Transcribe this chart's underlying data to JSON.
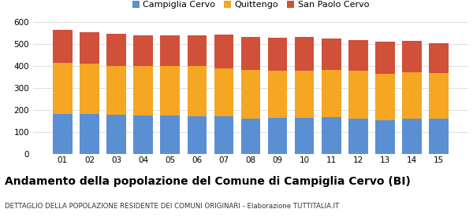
{
  "categories": [
    "01",
    "02",
    "03",
    "04",
    "05",
    "06",
    "07",
    "08",
    "09",
    "10",
    "11",
    "12",
    "13",
    "14",
    "15"
  ],
  "campiglia_cervo": [
    182,
    182,
    178,
    176,
    175,
    173,
    172,
    161,
    163,
    165,
    168,
    160,
    153,
    160,
    160
  ],
  "quittengo": [
    234,
    228,
    222,
    224,
    225,
    228,
    218,
    222,
    215,
    215,
    213,
    218,
    210,
    210,
    207
  ],
  "san_paolo_cervo": [
    148,
    143,
    148,
    138,
    138,
    140,
    152,
    150,
    152,
    151,
    143,
    140,
    148,
    143,
    138
  ],
  "colors": {
    "campiglia_cervo": "#5b8fd4",
    "quittengo": "#f5a623",
    "san_paolo_cervo": "#d0503a"
  },
  "legend_labels": [
    "Campiglia Cervo",
    "Quittengo",
    "San Paolo Cervo"
  ],
  "title": "Andamento della popolazione del Comune di Campiglia Cervo (BI)",
  "subtitle": "DETTAGLIO DELLA POPOLAZIONE RESIDENTE DEI COMUNI ORIGINARI - Elaborazione TUTTITALIA.IT",
  "ylim": [
    0,
    600
  ],
  "yticks": [
    0,
    100,
    200,
    300,
    400,
    500,
    600
  ],
  "title_fontsize": 10,
  "subtitle_fontsize": 6.2,
  "background_color": "#ffffff"
}
